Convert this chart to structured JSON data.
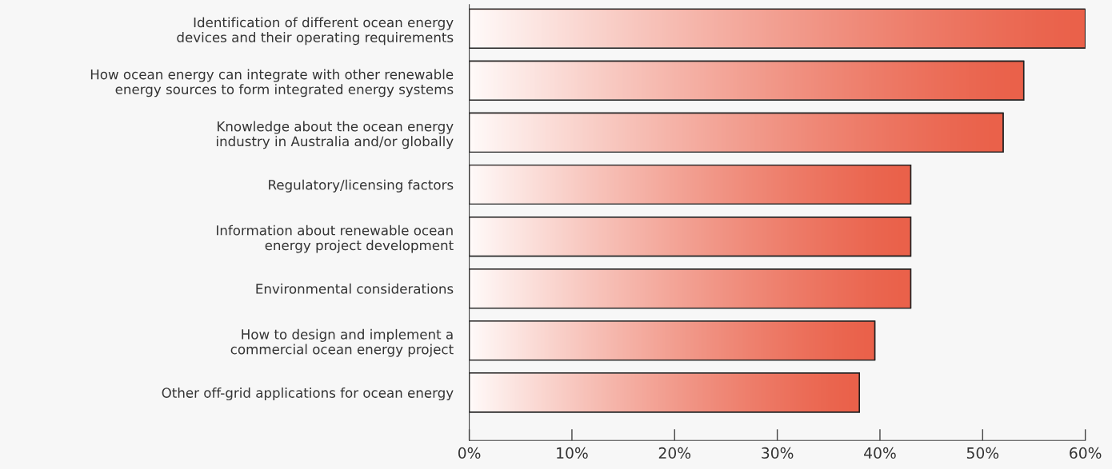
{
  "chart_data": {
    "type": "bar",
    "orientation": "horizontal",
    "categories": [
      "Identification of different ocean energy\ndevices and their operating requirements",
      "How ocean energy can integrate with other renewable\nenergy sources to form integrated energy systems",
      "Knowledge about the ocean energy\nindustry in Australia and/or globally",
      "Regulatory/licensing factors",
      "Information about renewable ocean\nenergy project development",
      "Environmental considerations",
      "How to design and implement a\ncommercial ocean energy project",
      "Other off-grid applications for ocean energy"
    ],
    "values": [
      60,
      54,
      52,
      43,
      43,
      43,
      39.5,
      38
    ],
    "color": "#ea614a",
    "xlim": [
      0,
      60
    ],
    "xticks": [
      {
        "value": 0,
        "label": "0%"
      },
      {
        "value": 10,
        "label": "10%"
      },
      {
        "value": 20,
        "label": "20%"
      },
      {
        "value": 30,
        "label": "30%"
      },
      {
        "value": 40,
        "label": "40%"
      },
      {
        "value": 50,
        "label": "50%"
      },
      {
        "value": 60,
        "label": "60%"
      }
    ],
    "grid": false,
    "legend": false
  }
}
